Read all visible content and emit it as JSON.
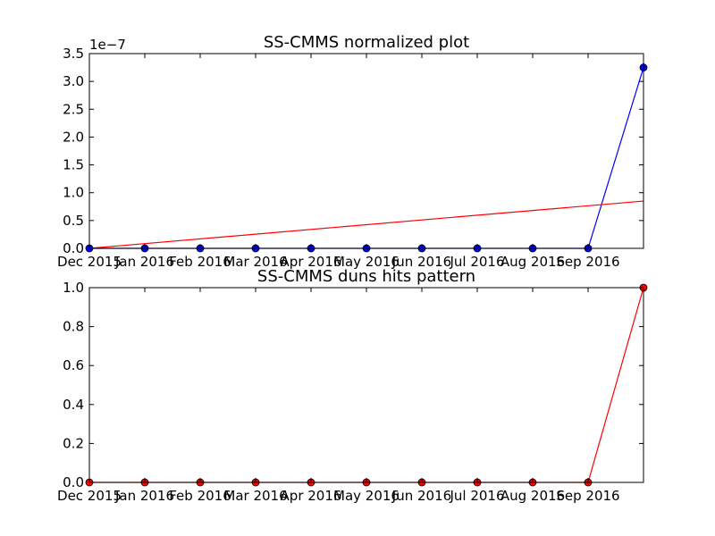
{
  "chart_data": [
    {
      "type": "line",
      "title": "SS-CMMS normalized plot",
      "xlabel": "",
      "ylabel": "",
      "y_offset_label": "1e−7",
      "x_tick_labels": [
        "Dec 2015",
        "Jan 2016",
        "Feb 2016",
        "Mar 2016",
        "Apr 2016",
        "May 2016",
        "Jun 2016",
        "Jul 2016",
        "Aug 2016",
        "Sep 2016"
      ],
      "y_tick_labels": [
        "0.0",
        "0.5",
        "1.0",
        "1.5",
        "2.0",
        "2.5",
        "3.0",
        "3.5"
      ],
      "ylim": [
        0,
        3.5
      ],
      "xlim": [
        0,
        10
      ],
      "grid": false,
      "series": [
        {
          "color": "#0000ff",
          "marker": "circle",
          "x": [
            0,
            1,
            2,
            3,
            4,
            5,
            6,
            7,
            8,
            9,
            10
          ],
          "y": [
            0,
            0,
            0,
            0,
            0,
            0,
            0,
            0,
            0,
            0,
            3.25
          ]
        },
        {
          "color": "#ff0000",
          "marker": "none",
          "x": [
            0,
            10
          ],
          "y": [
            0,
            0.85
          ]
        }
      ]
    },
    {
      "type": "line",
      "title": "SS-CMMS duns hits pattern",
      "xlabel": "",
      "ylabel": "",
      "x_tick_labels": [
        "Dec 2015",
        "Jan 2016",
        "Feb 2016",
        "Mar 2016",
        "Apr 2016",
        "May 2016",
        "Jun 2016",
        "Jul 2016",
        "Aug 2016",
        "Sep 2016"
      ],
      "y_tick_labels": [
        "0.0",
        "0.2",
        "0.4",
        "0.6",
        "0.8",
        "1.0"
      ],
      "ylim": [
        0,
        1.0
      ],
      "xlim": [
        0,
        10
      ],
      "grid": false,
      "series": [
        {
          "color": "#ff0000",
          "marker": "circle",
          "x": [
            0,
            1,
            2,
            3,
            4,
            5,
            6,
            7,
            8,
            9,
            10
          ],
          "y": [
            0,
            0,
            0,
            0,
            0,
            0,
            0,
            0,
            0,
            0,
            1.0
          ]
        }
      ]
    }
  ]
}
